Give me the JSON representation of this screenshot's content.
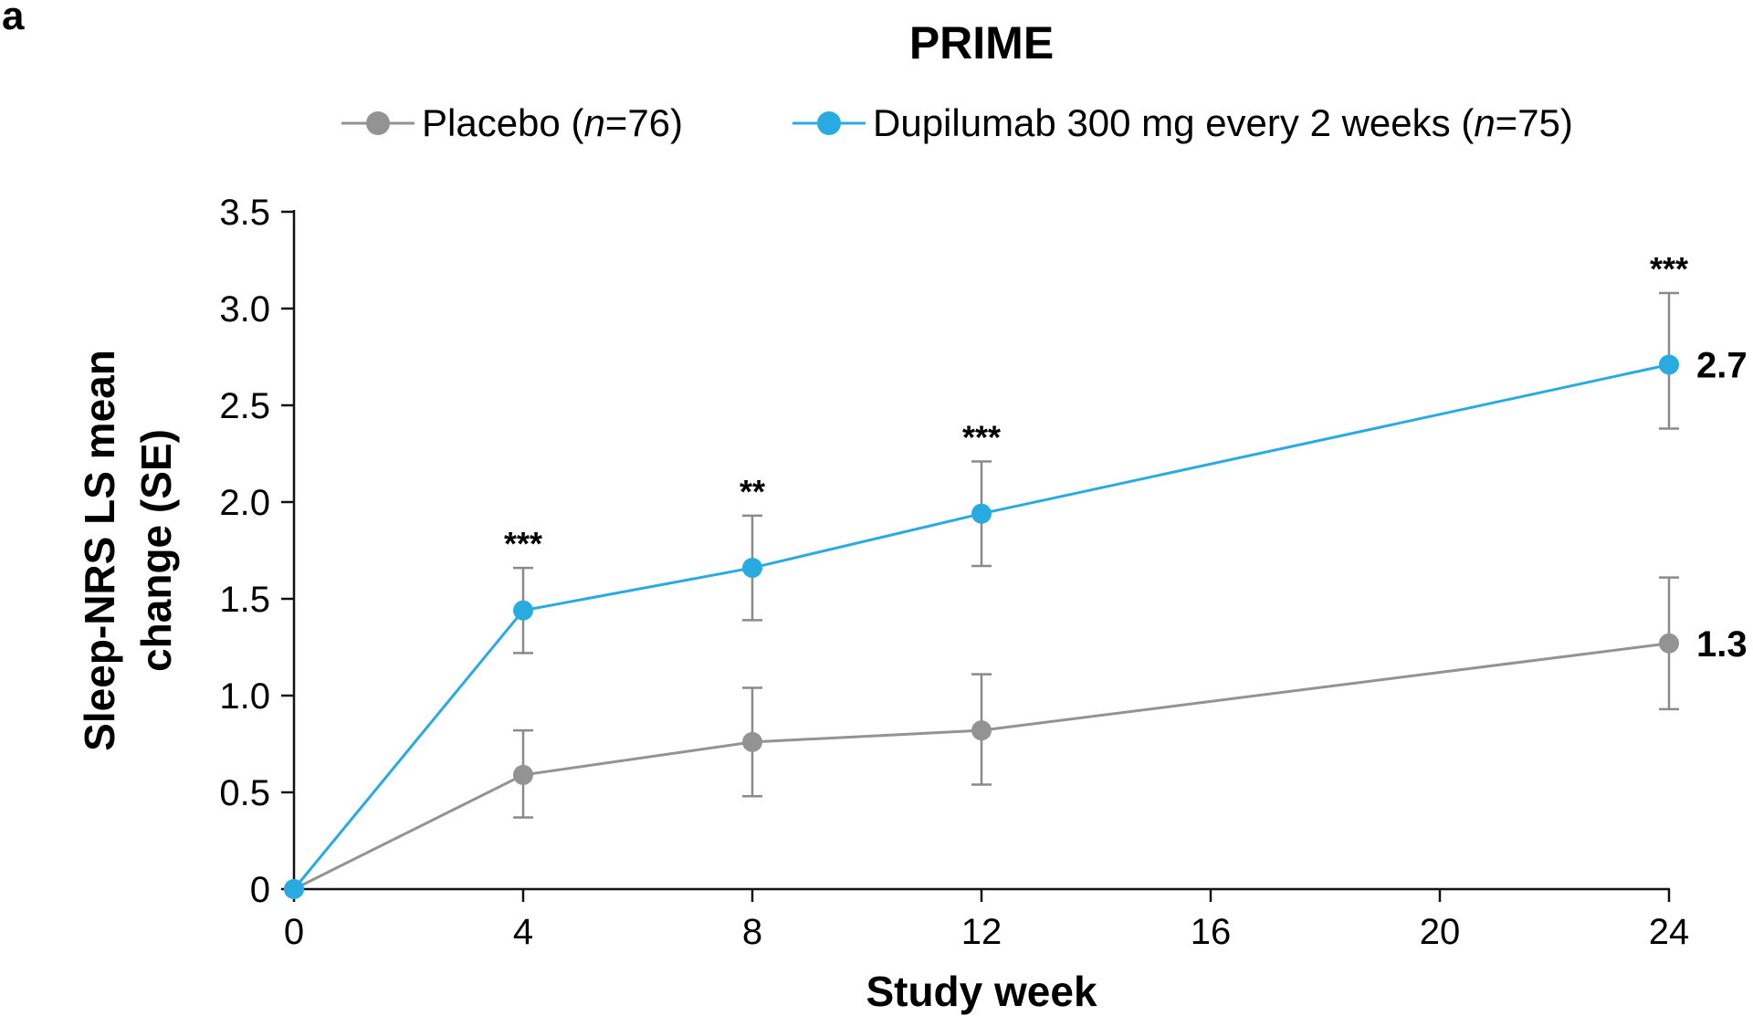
{
  "chart_data": {
    "type": "line",
    "panel_label": "a",
    "title": "PRIME",
    "xlabel": "Study week",
    "ylabel_lines": [
      "Sleep-NRS LS mean",
      "change (SE)"
    ],
    "xlim": [
      0,
      24
    ],
    "ylim": [
      0,
      3.5
    ],
    "x_ticks": [
      0,
      4,
      8,
      12,
      16,
      20,
      24
    ],
    "y_ticks": [
      0,
      0.5,
      1.0,
      1.5,
      2.0,
      2.5,
      3.0,
      3.5
    ],
    "y_tick_labels": [
      "0",
      "0.5",
      "1.0",
      "1.5",
      "2.0",
      "2.5",
      "3.0",
      "3.5"
    ],
    "grid": false,
    "legend_position": "top",
    "series": [
      {
        "name_main": "Placebo (",
        "name_n": "n",
        "name_rest": "=76)",
        "color": "#939393",
        "x": [
          0,
          4,
          8,
          12,
          24
        ],
        "y": [
          0,
          0.59,
          0.76,
          0.82,
          1.27
        ],
        "err_low": [
          null,
          0.37,
          0.48,
          0.54,
          0.93
        ],
        "err_high": [
          null,
          0.82,
          1.04,
          1.11,
          1.61
        ],
        "end_label": "1.3"
      },
      {
        "name_main": "Dupilumab 300 mg every 2 weeks (",
        "name_n": "n",
        "name_rest": "=75)",
        "color": "#29ABE2",
        "x": [
          0,
          4,
          8,
          12,
          24
        ],
        "y": [
          0,
          1.44,
          1.66,
          1.94,
          2.71
        ],
        "err_low": [
          null,
          1.22,
          1.39,
          1.67,
          2.38
        ],
        "err_high": [
          null,
          1.66,
          1.93,
          2.21,
          3.08
        ],
        "end_label": "2.7"
      }
    ],
    "annotations": [
      {
        "x": 4,
        "text": "***"
      },
      {
        "x": 8,
        "text": "**"
      },
      {
        "x": 12,
        "text": "***"
      },
      {
        "x": 24,
        "text": "***"
      }
    ]
  }
}
